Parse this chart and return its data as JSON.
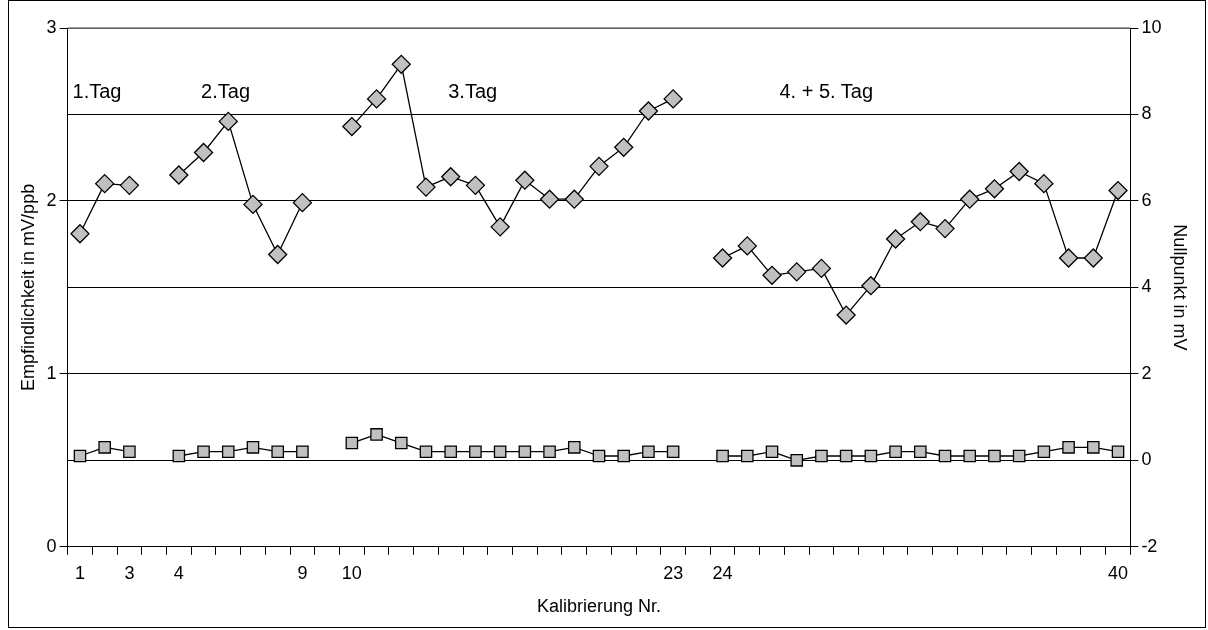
{
  "chart_data": {
    "type": "line",
    "xlabel": "Kalibrierung Nr.",
    "ylabel": "Empfindlichkeit in mV/ppb",
    "y2label": "Nullpunkt in mV",
    "categories": [
      "1",
      null,
      "3",
      null,
      "4",
      null,
      null,
      null,
      null,
      "9",
      null,
      "10",
      null,
      null,
      null,
      null,
      null,
      null,
      null,
      null,
      null,
      null,
      null,
      null,
      "23",
      null,
      "24",
      null,
      null,
      null,
      null,
      null,
      null,
      null,
      null,
      null,
      null,
      null,
      null,
      null,
      null,
      null,
      "40"
    ],
    "series": [
      {
        "color": "#c0c0c0",
        "marker": "diamond",
        "values": [
          1.81,
          2.1,
          2.09,
          null,
          2.15,
          2.28,
          2.46,
          1.98,
          1.69,
          1.99,
          null,
          2.43,
          2.59,
          2.79,
          2.08,
          2.14,
          2.09,
          1.85,
          2.12,
          2.01,
          2.01,
          2.2,
          2.31,
          2.52,
          2.59,
          null,
          1.67,
          1.74,
          1.57,
          1.59,
          1.61,
          1.34,
          1.51,
          1.78,
          1.88,
          1.84,
          2.01,
          2.07,
          2.17,
          2.1,
          1.67,
          1.67,
          2.06
        ]
      },
      {
        "color": "#c0c0c0",
        "marker": "square",
        "axis": "y2",
        "values": [
          0.1,
          0.3,
          0.2,
          null,
          0.1,
          0.2,
          0.2,
          0.3,
          0.2,
          0.2,
          null,
          0.4,
          0.6,
          0.4,
          0.2,
          0.2,
          0.2,
          0.2,
          0.2,
          0.2,
          0.3,
          0.1,
          0.1,
          0.2,
          0.2,
          null,
          0.1,
          0.1,
          0.2,
          0,
          0.1,
          0.1,
          0.1,
          0.2,
          0.2,
          0.1,
          0.1,
          0.1,
          0.1,
          0.2,
          0.3,
          0.3,
          0.2
        ]
      }
    ],
    "ylim": [
      0,
      3
    ],
    "yticks": [
      0,
      1,
      2,
      3
    ],
    "y2lim": [
      -2,
      10
    ],
    "y2ticks": [
      -2,
      0,
      2,
      4,
      6,
      8,
      10
    ],
    "grid": "y2",
    "legend": false,
    "annotations": [
      "1.Tag",
      "2.Tag",
      "3.Tag",
      "4. + 5. Tag"
    ]
  }
}
